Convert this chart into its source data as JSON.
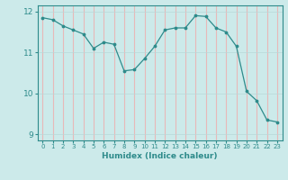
{
  "x": [
    0,
    1,
    2,
    3,
    4,
    5,
    6,
    7,
    8,
    9,
    10,
    11,
    12,
    13,
    14,
    15,
    16,
    17,
    18,
    19,
    20,
    21,
    22,
    23
  ],
  "y": [
    11.85,
    11.8,
    11.65,
    11.55,
    11.45,
    11.1,
    11.25,
    11.2,
    10.55,
    10.58,
    10.85,
    11.15,
    11.55,
    11.6,
    11.6,
    11.9,
    11.88,
    11.6,
    11.5,
    11.15,
    10.05,
    9.82,
    9.35,
    9.3
  ],
  "line_color": "#2e8b8b",
  "marker_color": "#2e8b8b",
  "bg_color": "#cceaea",
  "xlabel": "Humidex (Indice chaleur)",
  "xlim": [
    -0.5,
    23.5
  ],
  "ylim": [
    8.85,
    12.15
  ],
  "yticks": [
    9,
    10,
    11,
    12
  ],
  "xticks": [
    0,
    1,
    2,
    3,
    4,
    5,
    6,
    7,
    8,
    9,
    10,
    11,
    12,
    13,
    14,
    15,
    16,
    17,
    18,
    19,
    20,
    21,
    22,
    23
  ],
  "vgrid_color": "#e8b8b8",
  "hgrid_color": "#b8d8d8",
  "tick_label_color": "#2e8b8b",
  "xlabel_color": "#2e8b8b",
  "spine_color": "#2e8b8b"
}
